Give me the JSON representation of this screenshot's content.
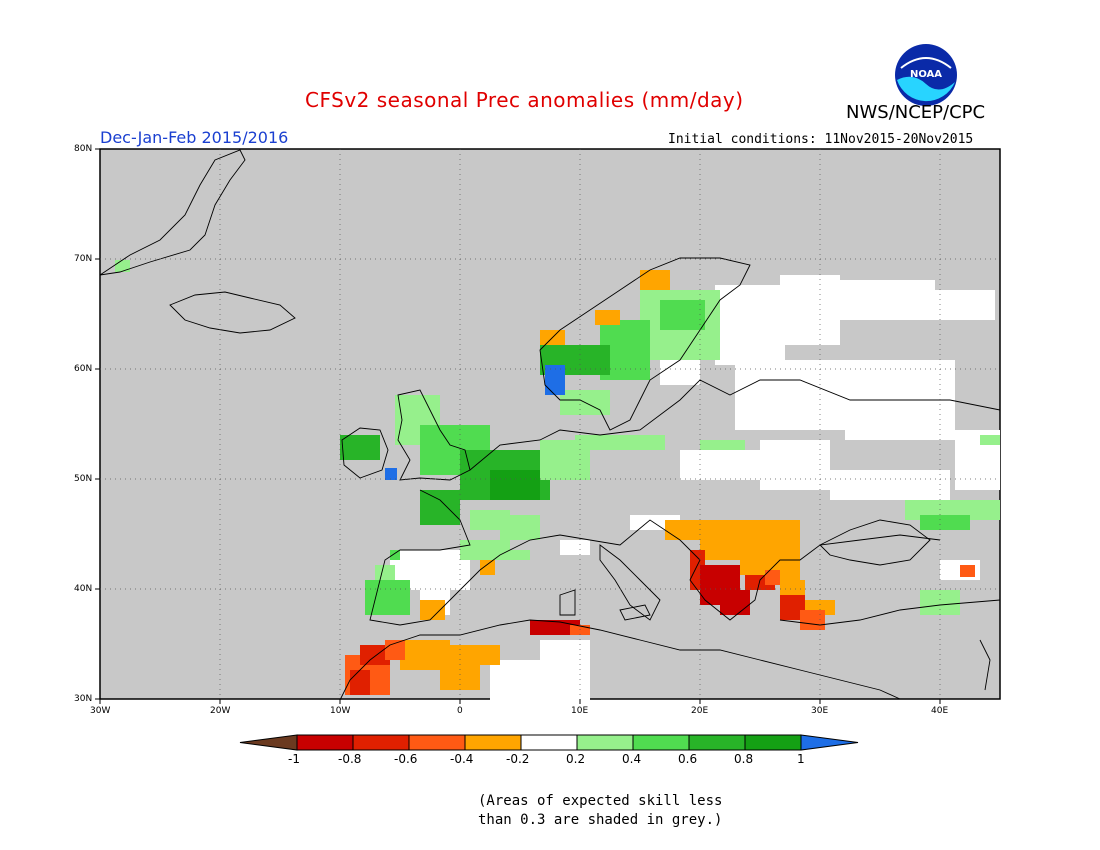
{
  "title": "CFSv2 seasonal Prec anomalies (mm/day)",
  "agency": "NWS/NCEP/CPC",
  "logo_text": "NOAA",
  "season": "Dec-Jan-Feb 2015/2016",
  "initial_conditions": "Initial conditions: 11Nov2015-20Nov2015",
  "note_lines": [
    "(Areas of expected skill less",
    "than 0.3 are shaded in grey.)"
  ],
  "lat_labels": [
    "80N",
    "70N",
    "60N",
    "50N",
    "40N",
    "30N"
  ],
  "lon_labels": [
    "30W",
    "20W",
    "10W",
    "0",
    "10E",
    "20E",
    "30E",
    "40E"
  ],
  "colorbar": {
    "labels": [
      "-1",
      "-0.8",
      "-0.6",
      "-0.4",
      "-0.2",
      "0.2",
      "0.4",
      "0.6",
      "0.8",
      "1"
    ],
    "colors": [
      "#6b3a20",
      "#c80000",
      "#e02000",
      "#ff5a14",
      "#ffa500",
      "#ffffff",
      "#96f08c",
      "#50dc50",
      "#28b428",
      "#14a014",
      "#1e6ee6"
    ]
  },
  "colors": {
    "grey_mask": "#c8c8c8",
    "title_red": "#e00000",
    "season_blue": "#1a3fd0"
  }
}
